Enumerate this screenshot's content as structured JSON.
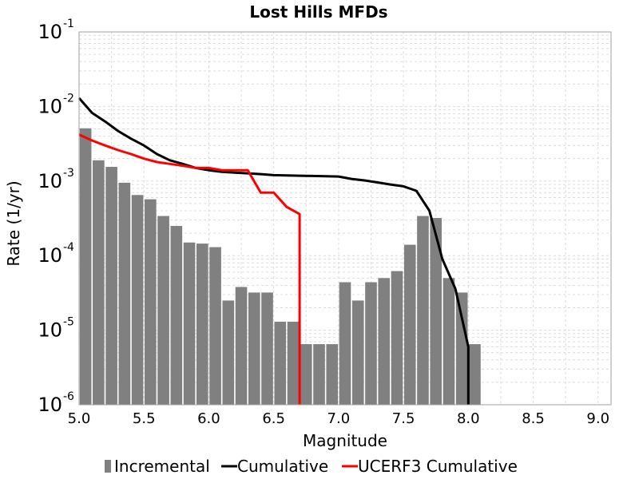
{
  "chart_data": {
    "type": "bar",
    "title": "Lost Hills MFDs",
    "xlabel": "Magnitude",
    "ylabel": "Rate (1/yr)",
    "xlim": [
      5.0,
      9.1
    ],
    "ylim": [
      1e-06,
      0.1
    ],
    "yscale": "log",
    "grid": true,
    "legend_position": "bottom",
    "x_ticks": [
      "5.0",
      "5.5",
      "6.0",
      "6.5",
      "7.0",
      "7.5",
      "8.0",
      "8.5",
      "9.0"
    ],
    "y_ticks": [
      {
        "base": "10",
        "exp": "-6"
      },
      {
        "base": "10",
        "exp": "-5"
      },
      {
        "base": "10",
        "exp": "-4"
      },
      {
        "base": "10",
        "exp": "-3"
      },
      {
        "base": "10",
        "exp": "-2"
      },
      {
        "base": "10",
        "exp": "-1"
      }
    ],
    "bar_width": 0.09,
    "series": [
      {
        "name": "Incremental",
        "kind": "bar",
        "color": "#808080",
        "x": [
          5.05,
          5.15,
          5.25,
          5.35,
          5.45,
          5.55,
          5.65,
          5.75,
          5.85,
          5.95,
          6.05,
          6.15,
          6.25,
          6.35,
          6.45,
          6.55,
          6.65,
          6.75,
          6.85,
          6.95,
          7.05,
          7.15,
          7.25,
          7.35,
          7.45,
          7.55,
          7.65,
          7.75,
          7.85,
          7.95,
          8.05
        ],
        "values": [
          0.0051,
          0.0019,
          0.00155,
          0.00095,
          0.00065,
          0.00057,
          0.00034,
          0.00025,
          0.00015,
          0.000145,
          0.00013,
          2.5e-05,
          3.8e-05,
          3.2e-05,
          3.2e-05,
          1.3e-05,
          1.3e-05,
          6.5e-06,
          6.5e-06,
          6.5e-06,
          4.4e-05,
          2.5e-05,
          4.4e-05,
          5e-05,
          6.2e-05,
          0.00014,
          0.00034,
          0.00032,
          5e-05,
          3.2e-05,
          6.5e-06
        ]
      },
      {
        "name": "Cumulative",
        "kind": "line",
        "color": "#000000",
        "x": [
          5.0,
          5.1,
          5.2,
          5.3,
          5.4,
          5.5,
          5.6,
          5.7,
          5.8,
          5.9,
          6.0,
          6.1,
          6.2,
          6.3,
          6.4,
          6.5,
          6.6,
          6.7,
          6.8,
          6.9,
          7.0,
          7.1,
          7.2,
          7.3,
          7.4,
          7.5,
          7.6,
          7.7,
          7.8,
          7.9,
          8.0,
          8.0
        ],
        "values": [
          0.013,
          0.0082,
          0.0063,
          0.0047,
          0.0037,
          0.003,
          0.0023,
          0.0019,
          0.0017,
          0.0015,
          0.0014,
          0.00133,
          0.0013,
          0.00127,
          0.00124,
          0.0012,
          0.00119,
          0.00118,
          0.00117,
          0.00116,
          0.00115,
          0.00107,
          0.00102,
          0.00096,
          0.0009,
          0.00085,
          0.00074,
          0.0004,
          9e-05,
          3.6e-05,
          6e-06,
          1e-06
        ]
      },
      {
        "name": "UCERF3 Cumulative",
        "kind": "line",
        "color": "#ff0000",
        "x": [
          5.0,
          5.1,
          5.2,
          5.3,
          5.4,
          5.5,
          5.6,
          5.7,
          5.8,
          5.9,
          6.0,
          6.1,
          6.2,
          6.3,
          6.4,
          6.5,
          6.6,
          6.7,
          6.7
        ],
        "values": [
          0.0042,
          0.0035,
          0.003,
          0.0026,
          0.0023,
          0.002,
          0.0018,
          0.0017,
          0.0016,
          0.0015,
          0.0015,
          0.0014,
          0.0014,
          0.0014,
          0.0007,
          0.0007,
          0.00045,
          0.00036,
          1e-06
        ]
      }
    ]
  }
}
